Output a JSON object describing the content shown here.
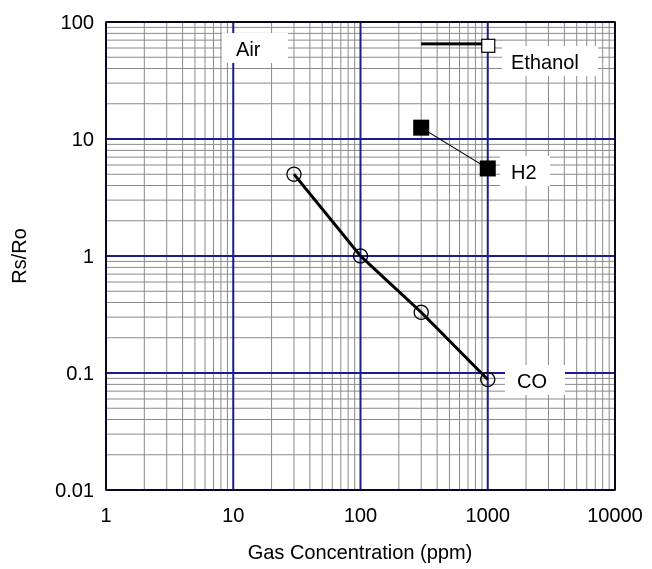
{
  "chart_data": {
    "type": "scatter",
    "title": "",
    "xlabel": "Gas Concentration (ppm)",
    "ylabel": "Rs/Ro",
    "x_scale": "log",
    "y_scale": "log",
    "xlim": [
      1,
      10000
    ],
    "ylim": [
      0.01,
      100
    ],
    "x_ticks": [
      1,
      10,
      100,
      1000,
      10000
    ],
    "x_tick_labels": [
      "1",
      "10",
      "100",
      "1000",
      "10000"
    ],
    "y_ticks": [
      0.01,
      0.1,
      1,
      10,
      100
    ],
    "y_tick_labels": [
      "0.01",
      "0.1",
      "1",
      "10",
      "100"
    ],
    "grid": true,
    "colors": {
      "major_grid": "#1c1c8c",
      "minor_grid": "#8a8a8a",
      "line": "#000000"
    },
    "series": [
      {
        "name": "Air",
        "marker": "none",
        "line_width": "thick",
        "x": [
          300,
          1000
        ],
        "y": [
          65,
          65
        ]
      },
      {
        "name": "Ethanol",
        "marker": "open-square",
        "line_width": "none",
        "x": [
          1000
        ],
        "y": [
          62
        ]
      },
      {
        "name": "H2",
        "marker": "filled-square",
        "line_width": "thin",
        "x": [
          300,
          1000
        ],
        "y": [
          12.5,
          5.6
        ]
      },
      {
        "name": "CO",
        "marker": "open-circle",
        "line_width": "thick",
        "x": [
          30,
          100,
          300,
          1000
        ],
        "y": [
          5,
          1,
          0.33,
          0.088
        ]
      }
    ]
  }
}
